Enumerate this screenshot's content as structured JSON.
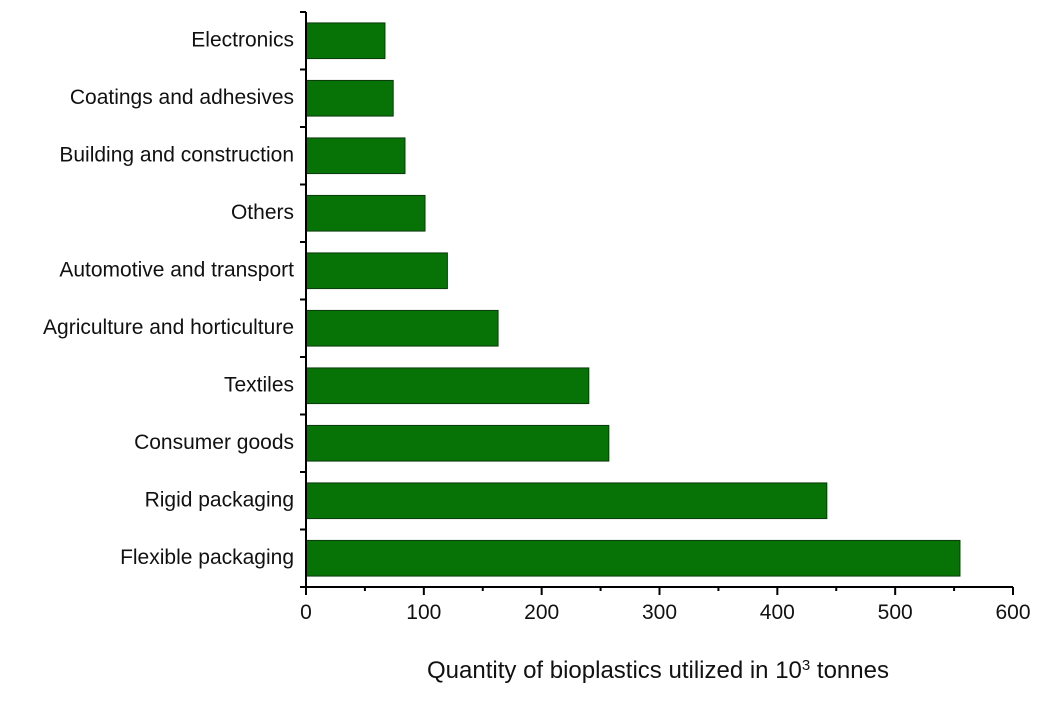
{
  "chart_data": {
    "type": "bar",
    "orientation": "horizontal",
    "categories": [
      "Electronics",
      "Coatings and adhesives",
      "Building and construction",
      "Others",
      "Automotive and transport",
      "Agriculture and horticulture",
      "Textiles",
      "Consumer goods",
      "Rigid packaging",
      "Flexible packaging"
    ],
    "values": [
      67,
      74,
      84,
      101,
      120,
      163,
      240,
      257,
      442,
      555
    ],
    "title": "",
    "xlabel_main": "Quantity of bioplastics utilized in 10",
    "xlabel_sup": "3",
    "xlabel_tail": " tonnes",
    "ylabel": "",
    "xlim": [
      0,
      600
    ],
    "xticks": [
      0,
      100,
      200,
      300,
      400,
      500,
      600
    ],
    "xtick_labels": [
      "0",
      "100",
      "200",
      "300",
      "400",
      "500",
      "600"
    ],
    "grid": false,
    "legend": "none",
    "bar_color": "#077307"
  }
}
